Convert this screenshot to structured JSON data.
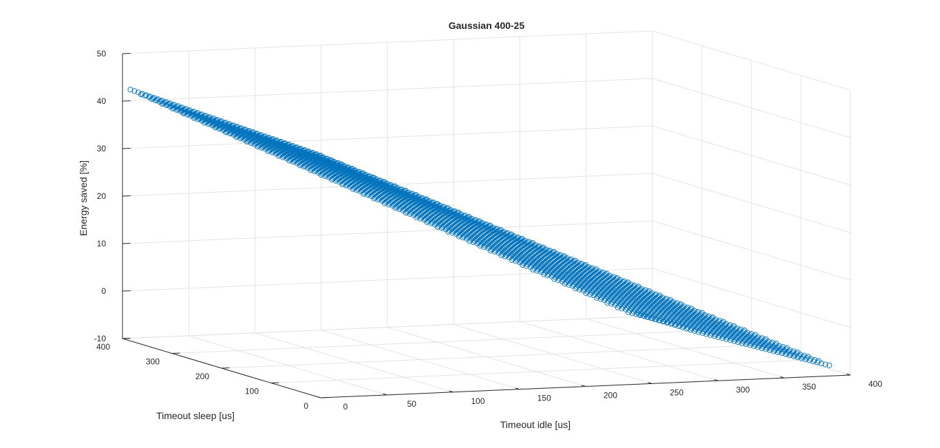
{
  "chart_data": {
    "type": "scatter3d",
    "title": "Gaussian 400-25",
    "xlabel": "Timeout idle [us]",
    "ylabel": "Timeout sleep [us]",
    "zlabel": "Energy saved [%]",
    "xlim": [
      0,
      400
    ],
    "ylim": [
      0,
      400
    ],
    "zlim": [
      -10,
      50
    ],
    "xticks": [
      "0",
      "50",
      "100",
      "150",
      "200",
      "250",
      "300",
      "350",
      "400"
    ],
    "yticks": [
      "0",
      "100",
      "200",
      "300",
      "400"
    ],
    "zticks": [
      "-10",
      "0",
      "10",
      "20",
      "30",
      "40",
      "50"
    ],
    "grid": true,
    "marker": "circle-open",
    "color": "#0072BD",
    "series": [
      {
        "grid_step_x": 8,
        "grid_step_y": 8,
        "x_range": [
          0,
          384
        ],
        "y_range": [
          0,
          384
        ],
        "description_points": [
          {
            "x": 0,
            "y": 400,
            "z": 43
          },
          {
            "x": 0,
            "y": 0,
            "z": 41
          },
          {
            "x": 120,
            "y": 0,
            "z": 34
          },
          {
            "x": 390,
            "y": 400,
            "z": -8
          },
          {
            "x": 390,
            "y": 0,
            "z": -9
          }
        ]
      }
    ]
  }
}
